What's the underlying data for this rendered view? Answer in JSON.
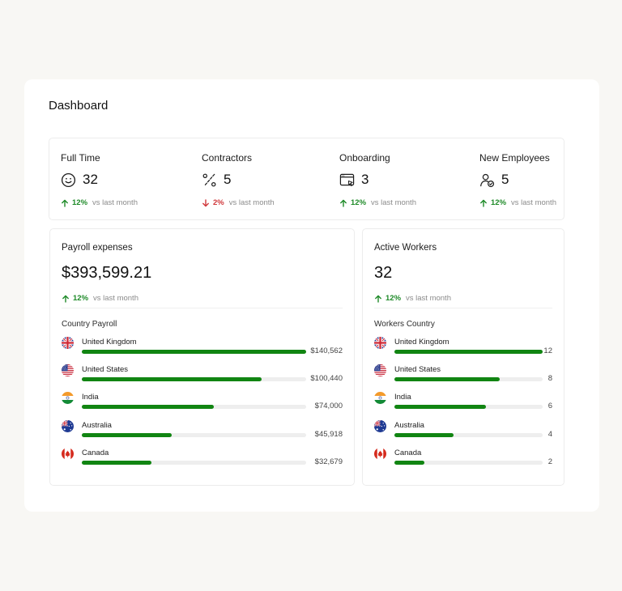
{
  "page": {
    "title": "Dashboard"
  },
  "stats": [
    {
      "label": "Full Time",
      "icon": "smiley-icon",
      "value": "32",
      "trend": "up",
      "change": "12%",
      "vs": "vs last month"
    },
    {
      "label": "Contractors",
      "icon": "percent-tool-icon",
      "value": "5",
      "trend": "down",
      "change": "2%",
      "vs": "vs last month"
    },
    {
      "label": "Onboarding",
      "icon": "browser-cursor-icon",
      "value": "3",
      "trend": "up",
      "change": "12%",
      "vs": "vs last month"
    },
    {
      "label": "New Employees",
      "icon": "user-check-icon",
      "value": "5",
      "trend": "up",
      "change": "12%",
      "vs": "vs last month"
    }
  ],
  "payroll": {
    "title": "Payroll expenses",
    "value": "$393,599.21",
    "change": "12%",
    "vs": "vs last month",
    "list_title": "Country Payroll",
    "rows": [
      {
        "country": "United Kingdom",
        "flag": "uk-flag-icon",
        "amount": "$140,562",
        "fraction": 1.0
      },
      {
        "country": "United States",
        "flag": "us-flag-icon",
        "amount": "$100,440",
        "fraction": 0.8
      },
      {
        "country": "India",
        "flag": "india-flag-icon",
        "amount": "$74,000",
        "fraction": 0.59
      },
      {
        "country": "Australia",
        "flag": "australia-flag-icon",
        "amount": "$45,918",
        "fraction": 0.4
      },
      {
        "country": "Canada",
        "flag": "canada-flag-icon",
        "amount": "$32,679",
        "fraction": 0.31
      }
    ]
  },
  "workers": {
    "title": "Active Workers",
    "value": "32",
    "change": "12%",
    "vs": "vs last month",
    "list_title": "Workers Country",
    "rows": [
      {
        "country": "United Kingdom",
        "flag": "uk-flag-icon",
        "amount": "12",
        "fraction": 1.0
      },
      {
        "country": "United States",
        "flag": "us-flag-icon",
        "amount": "8",
        "fraction": 0.71
      },
      {
        "country": "India",
        "flag": "india-flag-icon",
        "amount": "6",
        "fraction": 0.62
      },
      {
        "country": "Australia",
        "flag": "australia-flag-icon",
        "amount": "4",
        "fraction": 0.4
      },
      {
        "country": "Canada",
        "flag": "canada-flag-icon",
        "amount": "2",
        "fraction": 0.2
      }
    ]
  },
  "colors": {
    "accent": "#118512",
    "up": "#1e8a28",
    "down": "#d0383b",
    "muted": "#8b8b8b"
  }
}
